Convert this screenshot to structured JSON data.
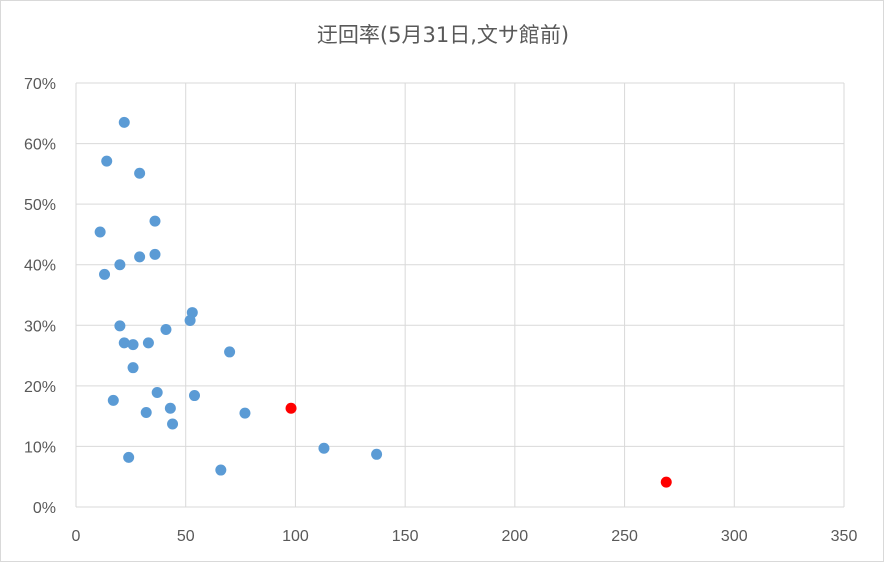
{
  "chart_data": {
    "type": "scatter",
    "title": "迂回率(5月31日,文サ館前)",
    "xlabel": "",
    "ylabel": "",
    "xlim": [
      0,
      350
    ],
    "ylim": [
      0,
      0.7
    ],
    "x_ticks": [
      "0",
      "50",
      "100",
      "150",
      "200",
      "250",
      "300",
      "350"
    ],
    "y_ticks": [
      "0%",
      "10%",
      "20%",
      "30%",
      "40%",
      "50%",
      "60%",
      "70%"
    ],
    "grid": true,
    "colors": {
      "default": "#5b9bd5",
      "highlight": "#ff0000"
    },
    "series": [
      {
        "color": "#5b9bd5",
        "points": [
          [
            22,
            0.635
          ],
          [
            14,
            0.571
          ],
          [
            29,
            0.551
          ],
          [
            36,
            0.472
          ],
          [
            11,
            0.454
          ],
          [
            36,
            0.417
          ],
          [
            29,
            0.413
          ],
          [
            20,
            0.4
          ],
          [
            13,
            0.384
          ],
          [
            53,
            0.321
          ],
          [
            52,
            0.308
          ],
          [
            20,
            0.299
          ],
          [
            41,
            0.293
          ],
          [
            22,
            0.271
          ],
          [
            26,
            0.268
          ],
          [
            33,
            0.271
          ],
          [
            70,
            0.256
          ],
          [
            26,
            0.23
          ],
          [
            37,
            0.189
          ],
          [
            54,
            0.184
          ],
          [
            17,
            0.176
          ],
          [
            43,
            0.163
          ],
          [
            32,
            0.156
          ],
          [
            77,
            0.155
          ],
          [
            44,
            0.137
          ],
          [
            113,
            0.097
          ],
          [
            137,
            0.087
          ],
          [
            24,
            0.082
          ],
          [
            66,
            0.061
          ]
        ]
      },
      {
        "color": "#ff0000",
        "points": [
          [
            98,
            0.163
          ],
          [
            269,
            0.041
          ]
        ]
      }
    ]
  }
}
